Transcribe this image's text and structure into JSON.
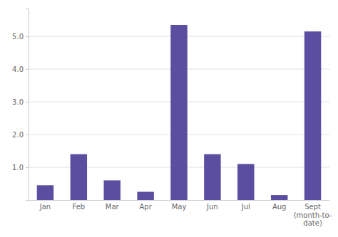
{
  "chart_data": {
    "type": "bar",
    "categories": [
      "Jan",
      "Feb",
      "Mar",
      "Apr",
      "May",
      "Jun",
      "Jul",
      "Aug",
      "Sept\n(month-to-\ndate)"
    ],
    "values": [
      0.45,
      1.4,
      0.6,
      0.25,
      5.35,
      1.4,
      1.1,
      0.15,
      5.15
    ],
    "color": "#5b4da0",
    "ylim": [
      0,
      5.85
    ],
    "yticks": [
      {
        "value": 1,
        "label": "1.0"
      },
      {
        "value": 2,
        "label": "2.0"
      },
      {
        "value": 3,
        "label": "3.0"
      },
      {
        "value": 4,
        "label": "4.0"
      },
      {
        "value": 5,
        "label": "5.0"
      }
    ],
    "grid": true
  }
}
